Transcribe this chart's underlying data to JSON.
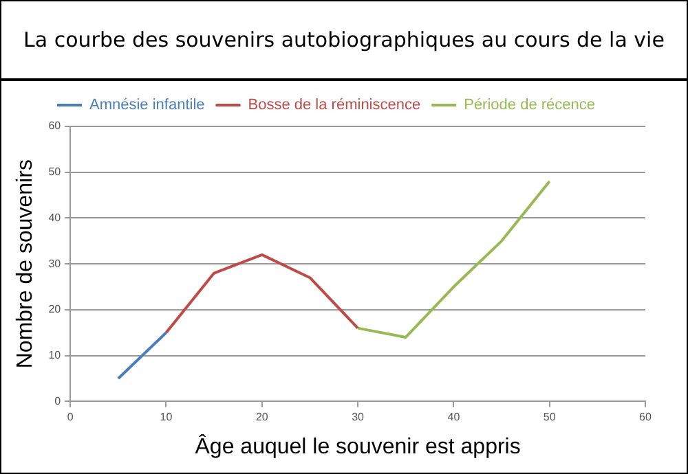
{
  "chart_data": {
    "type": "line",
    "title": "La courbe des souvenirs autobiographiques au cours de la vie",
    "xlabel": "Âge auquel le souvenir est appris",
    "ylabel": "Nombre de souvenirs",
    "series": [
      {
        "name": "Amnésie infantile",
        "color": "#4a7ebb",
        "x": [
          5,
          10
        ],
        "values": [
          5,
          15
        ]
      },
      {
        "name": "Bosse de la réminiscence",
        "color": "#be4b48",
        "x": [
          10,
          15,
          20,
          25,
          30
        ],
        "values": [
          15,
          28,
          32,
          27,
          16
        ]
      },
      {
        "name": "Période de récence",
        "color": "#98b954",
        "x": [
          30,
          35,
          40,
          45,
          50
        ],
        "values": [
          16,
          14,
          25,
          35,
          48
        ]
      }
    ],
    "xlim": [
      0,
      60
    ],
    "xticks": [
      0,
      10,
      20,
      30,
      40,
      50,
      60
    ],
    "ylim": [
      0,
      60
    ],
    "yticks": [
      0,
      10,
      20,
      30,
      40,
      50,
      60
    ],
    "grid": "y",
    "legend": "top",
    "marker": "none",
    "line_style": "solid"
  }
}
